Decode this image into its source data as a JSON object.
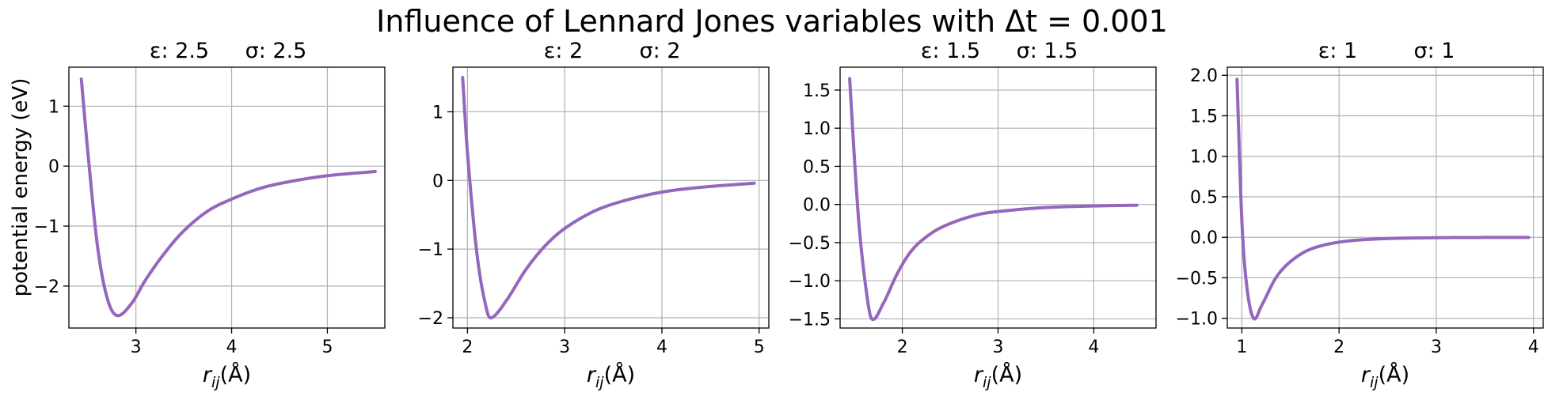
{
  "figure": {
    "title": "Influence of Lennard Jones variables with Δt = 0.001",
    "ylabel": "potential energy (eV)",
    "line_color": "#9467bd"
  },
  "chart_data": [
    {
      "type": "line",
      "title": "ε: 2.5        σ: 2.5",
      "epsilon": 2.5,
      "sigma": 2.5,
      "xlabel": "r_ij(Å)",
      "ylabel": "potential energy (eV)",
      "xlim": [
        2.3,
        5.6
      ],
      "ylim": [
        -2.7,
        1.65
      ],
      "xticks": [
        3,
        4,
        5
      ],
      "yticks": [
        -2,
        -1,
        0,
        1
      ],
      "x_range": [
        2.43,
        5.5
      ],
      "grid": true,
      "series": [
        {
          "values_x": [
            2.43,
            2.5,
            2.6,
            2.7,
            2.8,
            2.95,
            3.1,
            3.3,
            3.5,
            3.75,
            4.0,
            4.3,
            4.6,
            5.0,
            5.5
          ],
          "values_y": [
            1.45,
            0.2,
            -1.35,
            -2.2,
            -2.49,
            -2.3,
            -1.9,
            -1.45,
            -1.08,
            -0.75,
            -0.55,
            -0.37,
            -0.26,
            -0.16,
            -0.09
          ]
        }
      ]
    },
    {
      "type": "line",
      "title": "ε: 2        σ: 2",
      "epsilon": 2,
      "sigma": 2,
      "xlabel": "r_ij(Å)",
      "xlim": [
        1.85,
        5.1
      ],
      "ylim": [
        -2.15,
        1.65
      ],
      "xticks": [
        2,
        3,
        4,
        5
      ],
      "yticks": [
        -2,
        -1,
        0,
        1
      ],
      "x_range": [
        1.95,
        4.95
      ],
      "grid": true,
      "series": [
        {
          "values_x": [
            1.95,
            2.0,
            2.1,
            2.2,
            2.25,
            2.4,
            2.6,
            2.8,
            3.0,
            3.3,
            3.6,
            4.0,
            4.4,
            4.95
          ],
          "values_y": [
            1.5,
            0.4,
            -1.1,
            -1.9,
            -2.0,
            -1.75,
            -1.3,
            -0.95,
            -0.7,
            -0.45,
            -0.3,
            -0.17,
            -0.1,
            -0.04
          ]
        }
      ]
    },
    {
      "type": "line",
      "title": "ε: 1.5        σ: 1.5",
      "epsilon": 1.5,
      "sigma": 1.5,
      "xlabel": "r_ij(Å)",
      "xlim": [
        1.35,
        4.65
      ],
      "ylim": [
        -1.62,
        1.8
      ],
      "xticks": [
        2,
        3,
        4
      ],
      "yticks": [
        -1.5,
        -1.0,
        -0.5,
        0.0,
        0.5,
        1.0,
        1.5
      ],
      "x_range": [
        1.45,
        4.45
      ],
      "grid": true,
      "series": [
        {
          "values_x": [
            1.45,
            1.5,
            1.55,
            1.62,
            1.68,
            1.8,
            1.95,
            2.1,
            2.3,
            2.5,
            2.8,
            3.1,
            3.5,
            4.0,
            4.45
          ],
          "values_y": [
            1.65,
            0.6,
            -0.3,
            -1.1,
            -1.5,
            -1.3,
            -0.9,
            -0.6,
            -0.38,
            -0.25,
            -0.13,
            -0.08,
            -0.04,
            -0.02,
            -0.01
          ]
        }
      ]
    },
    {
      "type": "line",
      "title": "ε: 1        σ: 1",
      "epsilon": 1,
      "sigma": 1,
      "xlabel": "r_ij(Å)",
      "xlim": [
        0.85,
        4.1
      ],
      "ylim": [
        -1.12,
        2.1
      ],
      "xticks": [
        1,
        2,
        3,
        4
      ],
      "yticks": [
        -1.0,
        -0.5,
        0.0,
        0.5,
        1.0,
        1.5,
        2.0
      ],
      "x_range": [
        0.95,
        3.95
      ],
      "grid": true,
      "series": [
        {
          "values_x": [
            0.95,
            1.0,
            1.05,
            1.12,
            1.2,
            1.35,
            1.5,
            1.7,
            2.0,
            2.4,
            3.0,
            3.5,
            3.95
          ],
          "values_y": [
            1.95,
            0.2,
            -0.6,
            -1.0,
            -0.85,
            -0.5,
            -0.3,
            -0.15,
            -0.06,
            -0.02,
            -0.005,
            -0.002,
            -0.001
          ]
        }
      ]
    }
  ]
}
